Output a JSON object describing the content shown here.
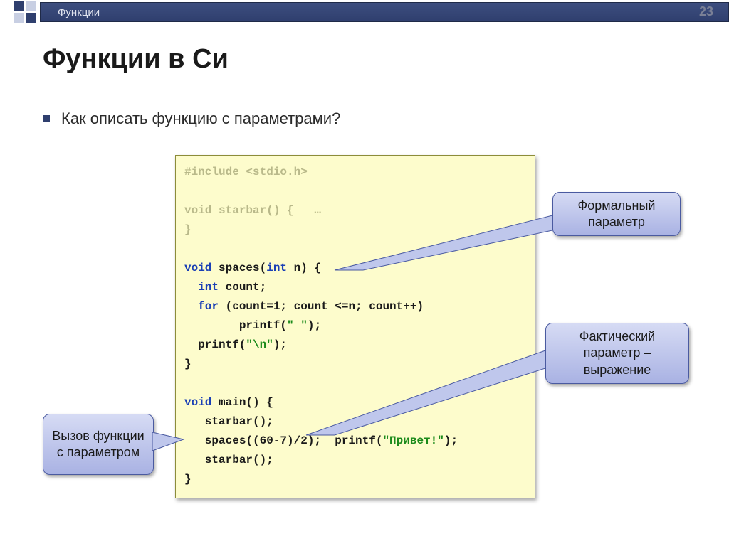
{
  "header": {
    "breadcrumb": "Функции"
  },
  "page_number": "23",
  "title": "Функции в Си",
  "bullet": "Как описать функцию с параметрами?",
  "code": {
    "lines": [
      [
        {
          "t": "#include <stdio.h>",
          "c": "dim"
        }
      ],
      [
        {
          "t": "",
          "c": ""
        }
      ],
      [
        {
          "t": "void starbar() {   …",
          "c": "dim"
        }
      ],
      [
        {
          "t": "}",
          "c": "dim"
        }
      ],
      [
        {
          "t": "",
          "c": ""
        }
      ],
      [
        {
          "t": "void",
          "c": "kw"
        },
        {
          "t": " spaces(",
          "c": ""
        },
        {
          "t": "int",
          "c": "kw"
        },
        {
          "t": " n) {",
          "c": ""
        }
      ],
      [
        {
          "t": "  ",
          "c": ""
        },
        {
          "t": "int",
          "c": "kw"
        },
        {
          "t": " count;",
          "c": ""
        }
      ],
      [
        {
          "t": "  ",
          "c": ""
        },
        {
          "t": "for",
          "c": "kw"
        },
        {
          "t": " (count=1; count <=n; count++)",
          "c": ""
        }
      ],
      [
        {
          "t": "        printf(",
          "c": ""
        },
        {
          "t": "\" \"",
          "c": "str"
        },
        {
          "t": ");",
          "c": ""
        }
      ],
      [
        {
          "t": "  printf(",
          "c": ""
        },
        {
          "t": "\"\\n\"",
          "c": "str"
        },
        {
          "t": ");",
          "c": ""
        }
      ],
      [
        {
          "t": "}",
          "c": ""
        }
      ],
      [
        {
          "t": "",
          "c": ""
        }
      ],
      [
        {
          "t": "void",
          "c": "kw"
        },
        {
          "t": " main() {",
          "c": ""
        }
      ],
      [
        {
          "t": "   starbar();",
          "c": ""
        }
      ],
      [
        {
          "t": "   spaces((60-7)/2);  printf(",
          "c": ""
        },
        {
          "t": "\"Привет!\"",
          "c": "str"
        },
        {
          "t": ");",
          "c": ""
        }
      ],
      [
        {
          "t": "   starbar();",
          "c": ""
        }
      ],
      [
        {
          "t": "}",
          "c": ""
        }
      ]
    ]
  },
  "callouts": {
    "formal": {
      "text": "Формальный параметр"
    },
    "actual": {
      "text": "Фактический параметр – выражение"
    },
    "call": {
      "text": "Вызов функции с параметром"
    }
  },
  "style": {
    "code_bg": "#fdfccc",
    "callout_fill": "#bfc7ec",
    "callout_stroke": "#4a5aa0",
    "accent": "#2f3f6e"
  }
}
